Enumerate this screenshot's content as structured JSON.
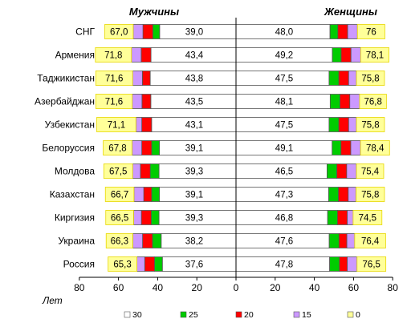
{
  "chart_data": {
    "type": "bar",
    "orientation": "horizontal",
    "layout": "butterfly",
    "xlabel": "Лет",
    "xlim": [
      80,
      0,
      80
    ],
    "xticks": [
      "80",
      "60",
      "40",
      "20",
      "0",
      "20",
      "40",
      "60",
      "80"
    ],
    "grid": false,
    "legend_position": "bottom",
    "left_title": "Мужчины",
    "right_title": "Женщины",
    "categories": [
      "СНГ",
      "Армения",
      "Таджикистан",
      "Азербайджан",
      "Узбекистан",
      "Белоруссия",
      "Молдова",
      "Казахстан",
      "Киргизия",
      "Украина",
      "Россия"
    ],
    "legend": [
      {
        "label": "30",
        "color": "#ffffff"
      },
      {
        "label": "25",
        "color": "#00cc00"
      },
      {
        "label": "20",
        "color": "#ff0000"
      },
      {
        "label": "15",
        "color": "#cc99ff"
      },
      {
        "label": "0",
        "color": "#ffff99"
      }
    ],
    "colors": {
      "white": "#ffffff",
      "green": "#00cc00",
      "red": "#ff0000",
      "lilac": "#cc99ff",
      "yellow": "#ffff99",
      "yellow_border": "#e8d800"
    },
    "series": [
      {
        "name": "Мужчины",
        "side": "left",
        "inner_labels": [
          "39,0",
          "43,4",
          "43,8",
          "43,5",
          "43,1",
          "39,1",
          "39,3",
          "39,1",
          "39,3",
          "38,2",
          "37,6"
        ],
        "outer_labels": [
          "67,0",
          "71,8",
          "71,6",
          "71,6",
          "71,1",
          "67,8",
          "67,5",
          "66,7",
          "66,5",
          "66,3",
          "65,3"
        ],
        "segments": [
          {
            "white": 39.0,
            "green": 3.5,
            "red": 5.0,
            "lilac": 5.0,
            "yellow": 14.5
          },
          {
            "white": 43.4,
            "green": 0.0,
            "red": 5.0,
            "lilac": 5.0,
            "yellow": 18.4
          },
          {
            "white": 43.8,
            "green": 0.0,
            "red": 4.0,
            "lilac": 5.0,
            "yellow": 18.8
          },
          {
            "white": 43.5,
            "green": 0.0,
            "red": 4.5,
            "lilac": 5.0,
            "yellow": 18.6
          },
          {
            "white": 43.1,
            "green": 0.0,
            "red": 5.0,
            "lilac": 3.0,
            "yellow": 20.0
          },
          {
            "white": 39.1,
            "green": 4.0,
            "red": 5.0,
            "lilac": 5.0,
            "yellow": 14.7
          },
          {
            "white": 39.3,
            "green": 4.5,
            "red": 5.0,
            "lilac": 4.0,
            "yellow": 14.7
          },
          {
            "white": 39.1,
            "green": 4.0,
            "red": 4.0,
            "lilac": 5.0,
            "yellow": 14.6
          },
          {
            "white": 39.3,
            "green": 4.0,
            "red": 5.0,
            "lilac": 4.0,
            "yellow": 14.2
          },
          {
            "white": 38.2,
            "green": 4.5,
            "red": 5.0,
            "lilac": 5.0,
            "yellow": 13.6
          },
          {
            "white": 37.6,
            "green": 4.0,
            "red": 5.0,
            "lilac": 4.0,
            "yellow": 14.7
          }
        ]
      },
      {
        "name": "Женщины",
        "side": "right",
        "inner_labels": [
          "48,0",
          "49,2",
          "47,5",
          "48,1",
          "47,5",
          "49,1",
          "46,5",
          "47,3",
          "46,8",
          "47,6",
          "47,8"
        ],
        "outer_labels": [
          "76",
          "78,1",
          "75,8",
          "76,8",
          "75,8",
          "78,4",
          "75,4",
          "75,8",
          "74,5",
          "76,4",
          "76,5"
        ],
        "segments": [
          {
            "white": 48.0,
            "green": 4.0,
            "red": 5.0,
            "lilac": 5.0,
            "yellow": 14.0
          },
          {
            "white": 49.2,
            "green": 4.5,
            "red": 5.0,
            "lilac": 5.0,
            "yellow": 14.4
          },
          {
            "white": 47.5,
            "green": 5.0,
            "red": 5.0,
            "lilac": 4.0,
            "yellow": 14.3
          },
          {
            "white": 48.1,
            "green": 5.0,
            "red": 5.0,
            "lilac": 5.0,
            "yellow": 13.7
          },
          {
            "white": 47.5,
            "green": 5.0,
            "red": 5.0,
            "lilac": 4.0,
            "yellow": 14.3
          },
          {
            "white": 49.1,
            "green": 4.5,
            "red": 5.0,
            "lilac": 5.0,
            "yellow": 14.8
          },
          {
            "white": 46.5,
            "green": 5.0,
            "red": 5.0,
            "lilac": 5.0,
            "yellow": 13.9
          },
          {
            "white": 47.3,
            "green": 5.0,
            "red": 5.0,
            "lilac": 4.0,
            "yellow": 14.5
          },
          {
            "white": 46.8,
            "green": 5.0,
            "red": 5.0,
            "lilac": 3.0,
            "yellow": 14.7
          },
          {
            "white": 47.6,
            "green": 5.0,
            "red": 4.0,
            "lilac": 4.0,
            "yellow": 15.8
          },
          {
            "white": 47.8,
            "green": 5.0,
            "red": 4.0,
            "lilac": 5.0,
            "yellow": 14.7
          }
        ]
      }
    ]
  }
}
